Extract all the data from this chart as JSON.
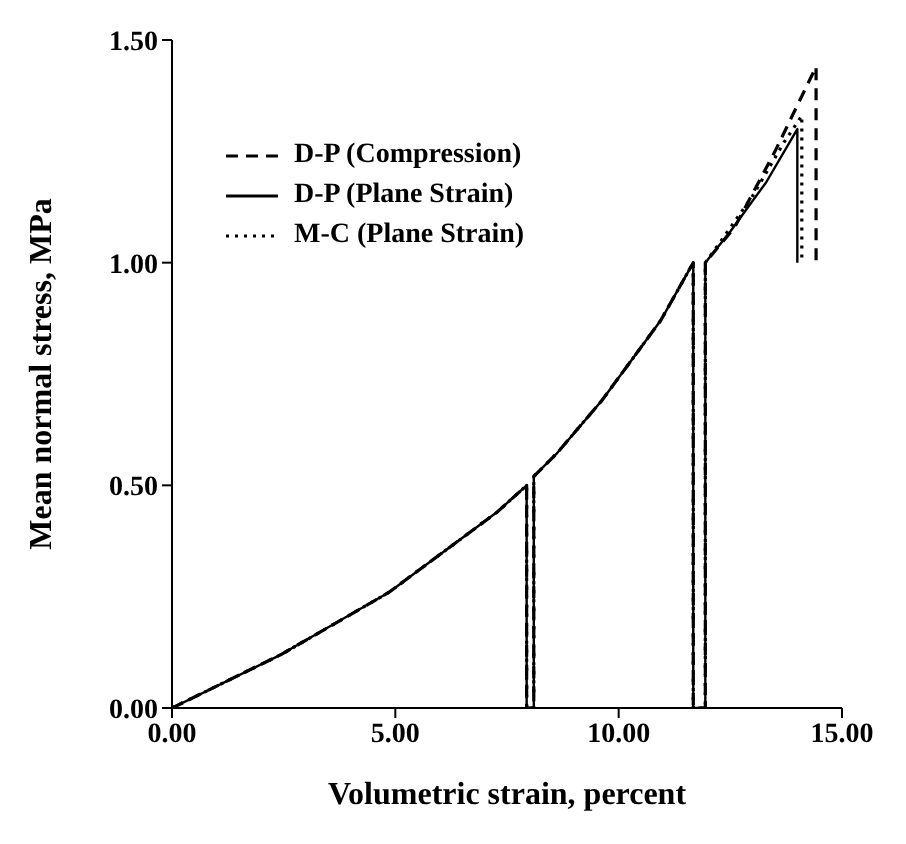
{
  "chart_data": {
    "type": "line",
    "xlabel": "Volumetric strain, percent",
    "ylabel": "Mean normal stress, MPa",
    "xlim": [
      0,
      15
    ],
    "xticks": [
      {
        "value": 0,
        "label": "0.00"
      },
      {
        "value": 5,
        "label": "5.00"
      },
      {
        "value": 10,
        "label": "10.00"
      },
      {
        "value": 15,
        "label": "15.00"
      }
    ],
    "ylim": [
      0,
      1.5
    ],
    "yticks": [
      {
        "value": 0,
        "label": "0.00"
      },
      {
        "value": 0.5,
        "label": "0.50"
      },
      {
        "value": 1,
        "label": "1.00"
      },
      {
        "value": 1.5,
        "label": "1.50"
      }
    ],
    "grid": false,
    "legend": "top left",
    "marker": "none",
    "series": [
      {
        "name": "D-P (Compression)",
        "color": "#000000",
        "line_style": "dashed",
        "x": [
          0,
          2.44,
          4.86,
          7.28,
          7.94,
          7.94,
          8.1,
          8.1,
          8.6,
          9.62,
          10.94,
          11.67,
          11.67,
          11.94,
          11.94,
          12.6,
          13.5,
          14.42,
          14.42
        ],
        "values": [
          0,
          0.12,
          0.26,
          0.44,
          0.5,
          0,
          0,
          0.52,
          0.57,
          0.69,
          0.87,
          1.0,
          0,
          0,
          1.0,
          1.08,
          1.25,
          1.44,
          1.0
        ]
      },
      {
        "name": "D-P (Plane Strain)",
        "color": "#000000",
        "line_style": "solid",
        "x": [
          0,
          2.44,
          4.86,
          7.28,
          7.94,
          7.94,
          8.1,
          8.1,
          8.6,
          9.62,
          10.94,
          11.67,
          11.67,
          11.94,
          11.94,
          12.5,
          13.3,
          14.0,
          14.0
        ],
        "values": [
          0,
          0.12,
          0.26,
          0.44,
          0.5,
          0,
          0,
          0.52,
          0.57,
          0.69,
          0.87,
          1.0,
          0,
          0,
          1.0,
          1.07,
          1.18,
          1.3,
          1.0
        ]
      },
      {
        "name": "M-C (Plane Strain)",
        "color": "#000000",
        "line_style": "dotted",
        "x": [
          0,
          2.44,
          4.86,
          7.28,
          7.94,
          7.94,
          8.1,
          8.1,
          8.6,
          9.62,
          10.94,
          11.67,
          11.67,
          11.94,
          11.94,
          12.3,
          13.0,
          13.7,
          14.1,
          14.1
        ],
        "values": [
          0,
          0.12,
          0.26,
          0.44,
          0.5,
          0,
          0,
          0.52,
          0.57,
          0.69,
          0.87,
          1.0,
          0,
          0,
          1.0,
          1.05,
          1.15,
          1.27,
          1.33,
          1.0
        ]
      }
    ]
  }
}
